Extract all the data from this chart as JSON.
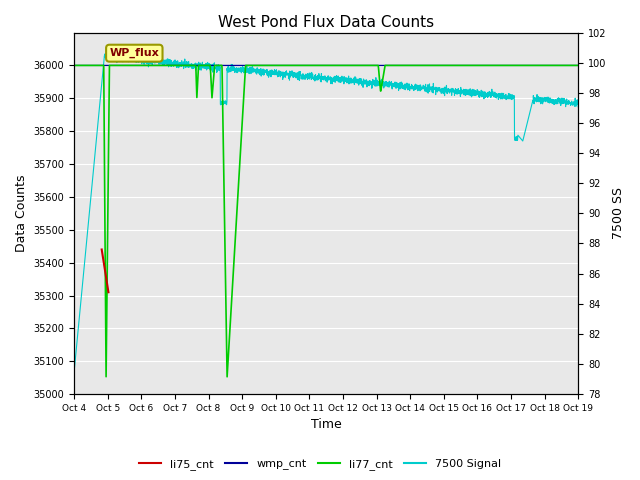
{
  "title": "West Pond Flux Data Counts",
  "xlabel": "Time",
  "ylabel_left": "Data Counts",
  "ylabel_right": "7500 SS",
  "ylim_left": [
    35000,
    36100
  ],
  "ylim_right": [
    78,
    102
  ],
  "bg_color": "#e8e8e8",
  "annotation_text": "WP_flux",
  "x_tick_labels": [
    "Oct 4",
    "Oct 5",
    "Oct 6",
    "Oct 7",
    "Oct 8",
    "Oct 9",
    "Oct 10",
    "Oct 11",
    "Oct 12",
    "Oct 13",
    "Oct 14",
    "Oct 15",
    "Oct 16",
    "Oct 17",
    "Oct 18",
    "Oct 19"
  ],
  "legend_labels": [
    "li75_cnt",
    "wmp_cnt",
    "li77_cnt",
    "7500 Signal"
  ],
  "legend_colors": [
    "#cc0000",
    "#000099",
    "#00cc00",
    "#00cccc"
  ],
  "yticks_left": [
    35000,
    35100,
    35200,
    35300,
    35400,
    35500,
    35600,
    35700,
    35800,
    35900,
    36000
  ],
  "yticks_right": [
    78,
    80,
    82,
    84,
    86,
    88,
    90,
    92,
    94,
    96,
    98,
    100,
    102
  ]
}
